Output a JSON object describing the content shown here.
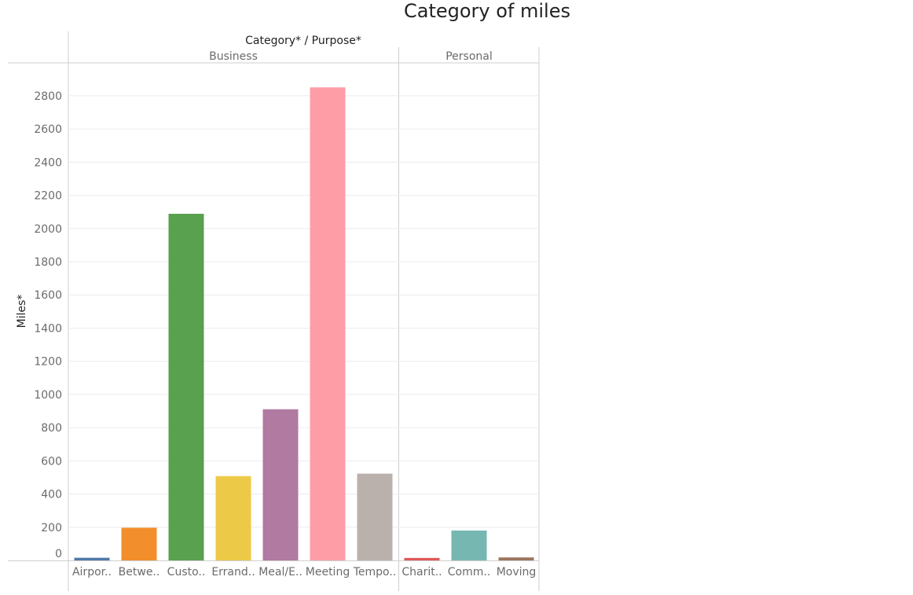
{
  "chart_data": {
    "type": "bar",
    "title": "Category of miles",
    "header": "Category* / Purpose*",
    "ylabel": "Miles*",
    "ylim": [
      0,
      2900
    ],
    "yticks": [
      0,
      200,
      400,
      600,
      800,
      1000,
      1200,
      1400,
      1600,
      1800,
      2000,
      2200,
      2400,
      2600,
      2800
    ],
    "grid": true,
    "groups": [
      {
        "name": "Business",
        "categories": [
          {
            "label": "Airpor..",
            "value": 16,
            "color": "#4e79a7"
          },
          {
            "label": "Betwe..",
            "value": 197,
            "color": "#f28e2b"
          },
          {
            "label": "Custo..",
            "value": 2089,
            "color": "#59a14f"
          },
          {
            "label": "Errand..",
            "value": 508,
            "color": "#edc948"
          },
          {
            "label": "Meal/E..",
            "value": 911,
            "color": "#b07aa1"
          },
          {
            "label": "Meeting",
            "value": 2851,
            "color": "#ff9da7"
          },
          {
            "label": "Tempo..",
            "value": 523,
            "color": "#bab0ac"
          }
        ]
      },
      {
        "name": "Personal",
        "categories": [
          {
            "label": "Charit..",
            "value": 15,
            "color": "#e15759"
          },
          {
            "label": "Comm..",
            "value": 180,
            "color": "#76b7b2"
          },
          {
            "label": "Moving",
            "value": 18,
            "color": "#9c755f"
          }
        ]
      }
    ]
  }
}
